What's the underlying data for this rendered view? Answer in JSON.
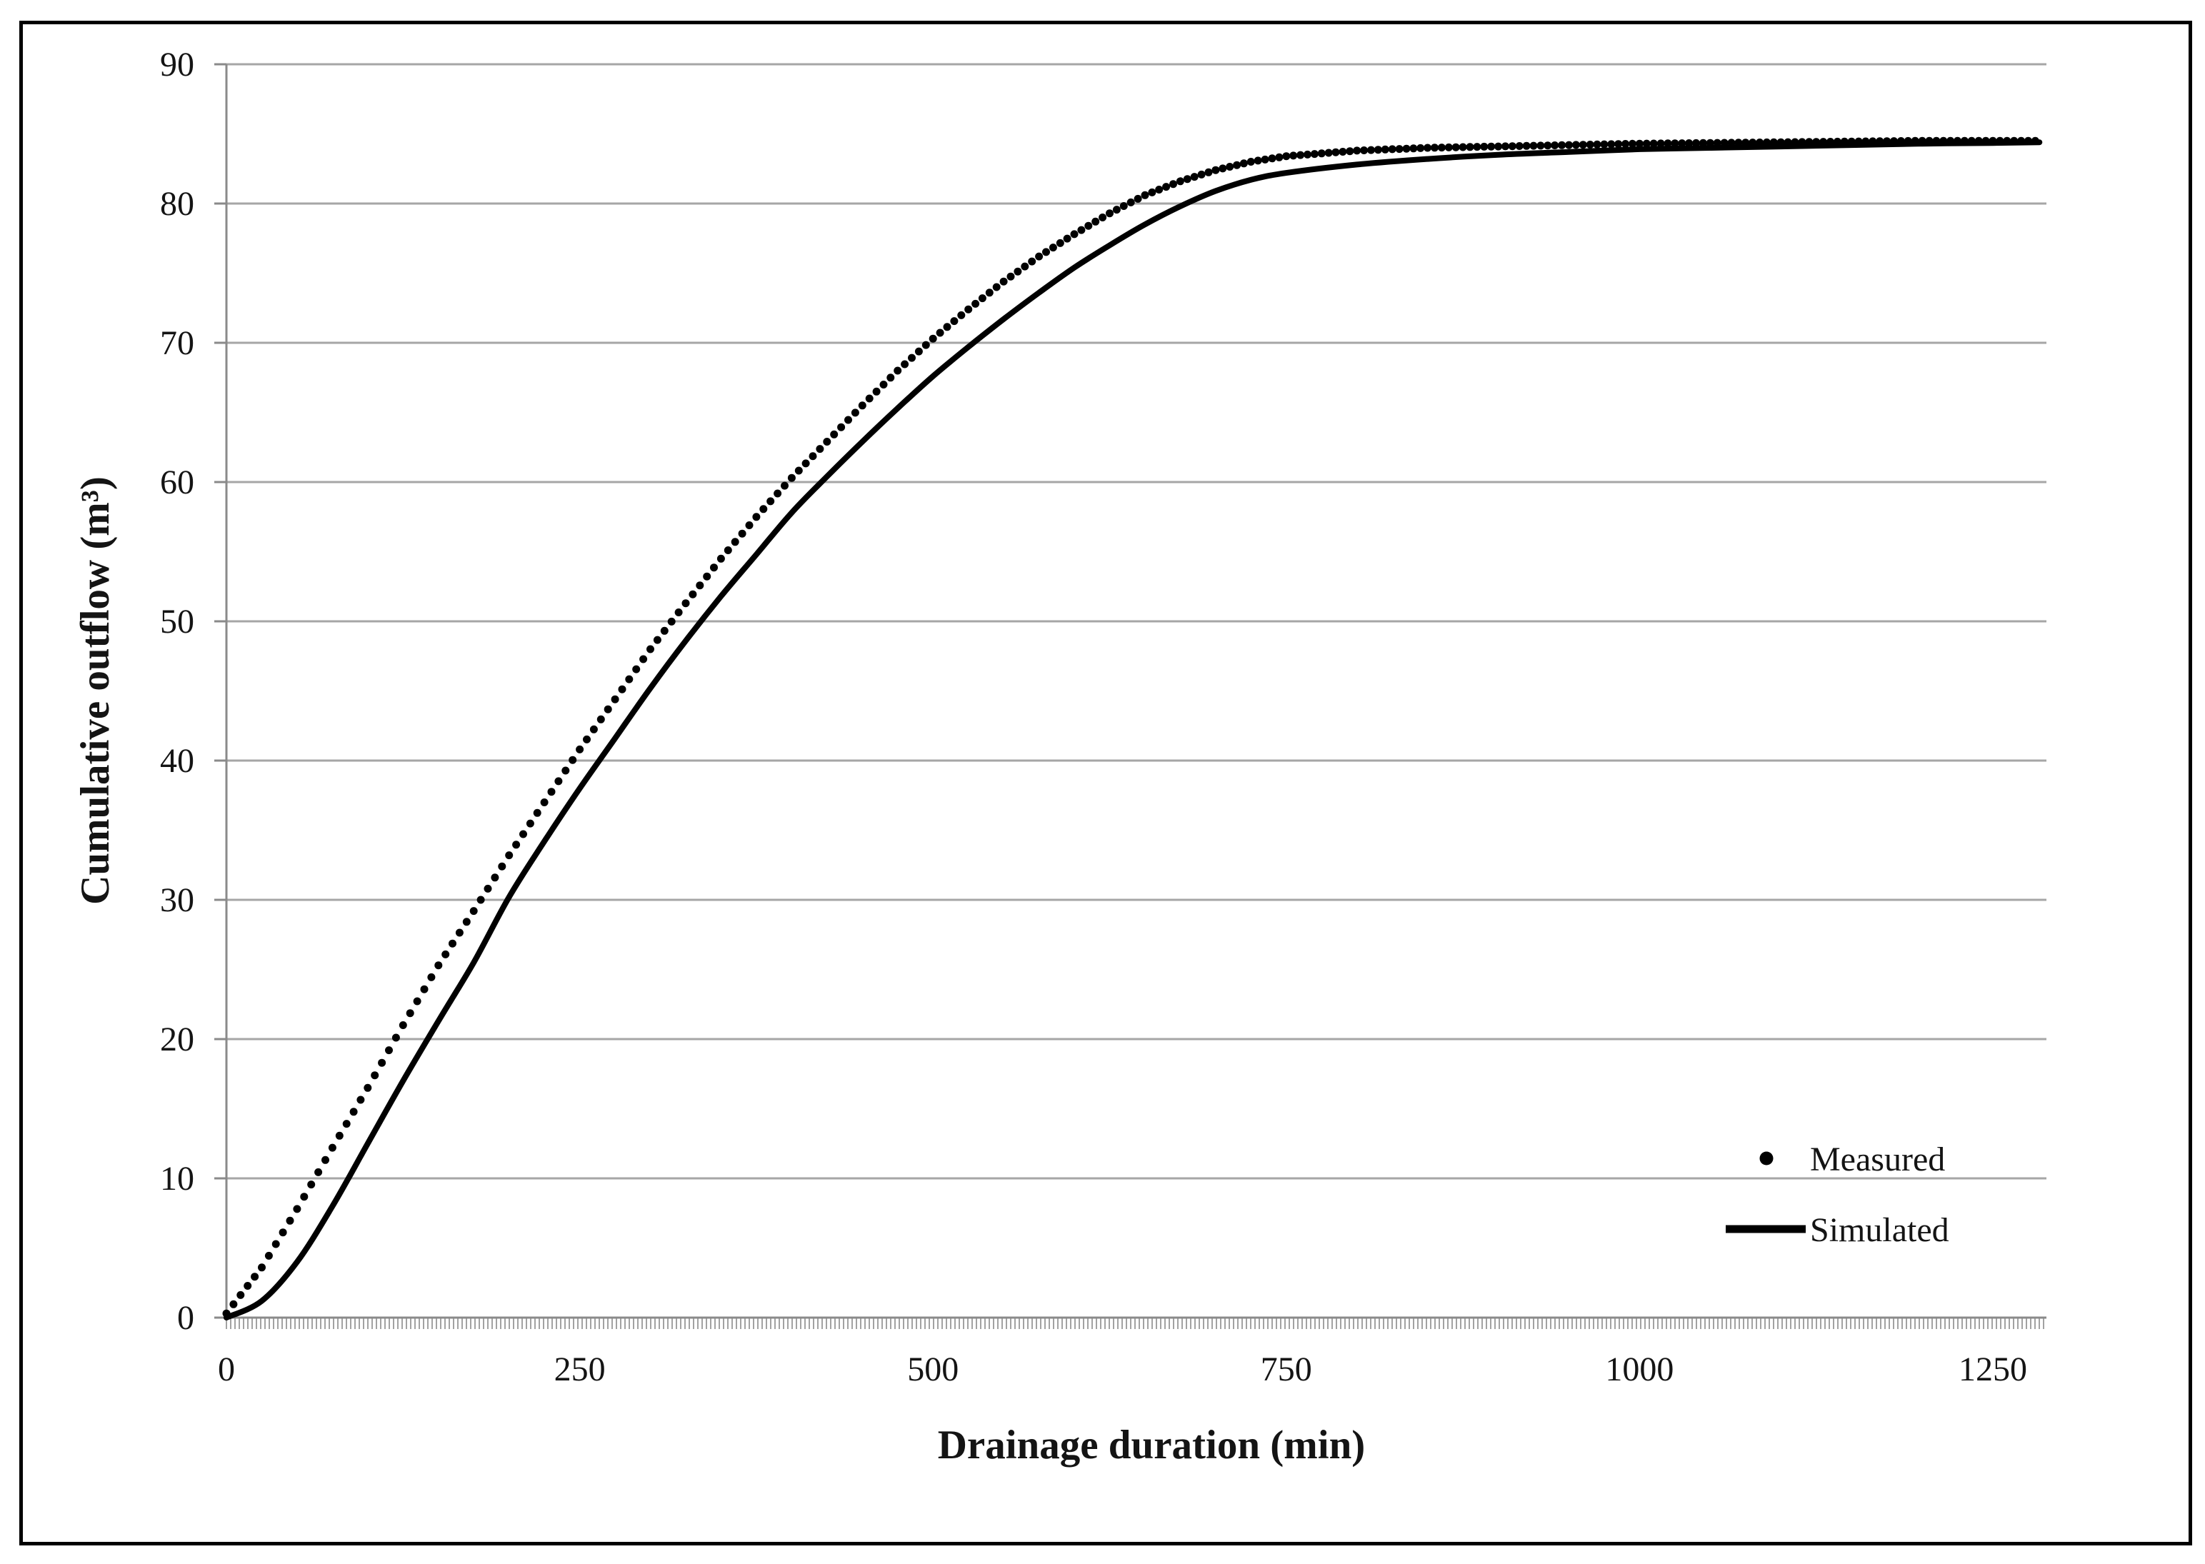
{
  "chart_data": {
    "type": "line",
    "title": "",
    "xlabel": "Drainage duration (min)",
    "ylabel": "Cumulative outflow (m³)",
    "xlim": [
      0,
      1288
    ],
    "ylim": [
      0,
      90
    ],
    "x_ticks": [
      0,
      250,
      500,
      750,
      1000,
      1250
    ],
    "y_ticks": [
      0,
      10,
      20,
      30,
      40,
      50,
      60,
      70,
      80,
      90
    ],
    "grid": "horizontal-only",
    "legend_position": "lower-right-inside",
    "colors": {
      "series": "#000000",
      "grid": "#a6a6a6",
      "axis": "#8a8a8a",
      "text": "#141414",
      "frame": "#000000"
    },
    "series": [
      {
        "name": "Measured",
        "marker": "dot",
        "sample_interval_min": 5,
        "x": [
          0,
          25,
          50,
          75,
          100,
          125,
          150,
          175,
          200,
          225,
          250,
          275,
          300,
          325,
          350,
          375,
          400,
          425,
          450,
          475,
          500,
          525,
          550,
          575,
          600,
          625,
          650,
          675,
          700,
          725,
          750,
          800,
          850,
          900,
          950,
          1000,
          1050,
          1100,
          1150,
          1200,
          1250,
          1283
        ],
        "y": [
          0.3,
          3.6,
          7.8,
          12.2,
          16.5,
          21.0,
          25.3,
          29.2,
          33.2,
          37.0,
          40.8,
          44.4,
          48.0,
          51.3,
          54.5,
          57.5,
          60.3,
          62.9,
          65.5,
          68.0,
          70.3,
          72.4,
          74.4,
          76.2,
          77.8,
          79.3,
          80.6,
          81.6,
          82.4,
          83.0,
          83.4,
          83.8,
          84.0,
          84.1,
          84.2,
          84.3,
          84.35,
          84.4,
          84.45,
          84.5,
          84.5,
          84.5
        ]
      },
      {
        "name": "Simulated",
        "marker": "line",
        "x": [
          0,
          25,
          50,
          75,
          100,
          125,
          150,
          175,
          200,
          225,
          250,
          275,
          300,
          325,
          350,
          375,
          400,
          425,
          450,
          475,
          500,
          525,
          550,
          575,
          600,
          625,
          650,
          675,
          700,
          725,
          750,
          800,
          850,
          900,
          950,
          1000,
          1050,
          1100,
          1150,
          1200,
          1250,
          1283
        ],
        "y": [
          0.0,
          1.2,
          4.0,
          8.0,
          12.5,
          17.0,
          21.3,
          25.5,
          30.2,
          34.2,
          38.0,
          41.6,
          45.2,
          48.6,
          51.8,
          54.8,
          57.8,
          60.4,
          62.9,
          65.3,
          67.6,
          69.7,
          71.7,
          73.6,
          75.4,
          77.0,
          78.5,
          79.8,
          80.9,
          81.7,
          82.2,
          82.8,
          83.2,
          83.5,
          83.7,
          83.9,
          84.0,
          84.1,
          84.2,
          84.3,
          84.35,
          84.4
        ]
      }
    ]
  }
}
